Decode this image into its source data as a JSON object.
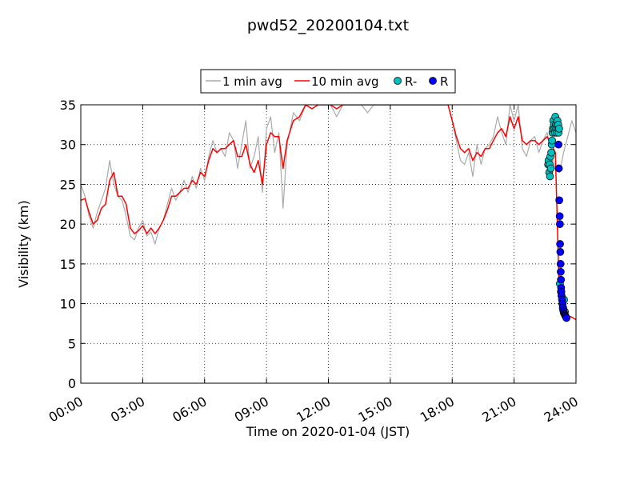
{
  "chart_data": {
    "type": "line",
    "title": "pwd52_20200104.txt",
    "xlabel": "Time on 2020-01-04 (JST)",
    "ylabel": "Visibility (km)",
    "xlim": [
      0,
      24
    ],
    "ylim": [
      0,
      35
    ],
    "x_ticks": [
      "00:00",
      "03:00",
      "06:00",
      "09:00",
      "12:00",
      "15:00",
      "18:00",
      "21:00",
      "24:00"
    ],
    "y_ticks": [
      "0",
      "5",
      "10",
      "15",
      "20",
      "25",
      "30",
      "35"
    ],
    "grid": true,
    "legend_position": "top-center",
    "colors": {
      "one_min": "#aaaaaa",
      "ten_min": "#ff0000",
      "r_minus": "#00bfbf",
      "r": "#0000ff"
    },
    "series": [
      {
        "name": "1 min avg",
        "style": "line",
        "x": [
          0.0,
          0.2,
          0.4,
          0.6,
          0.8,
          1.0,
          1.2,
          1.4,
          1.6,
          1.8,
          2.0,
          2.2,
          2.4,
          2.6,
          2.8,
          3.0,
          3.2,
          3.4,
          3.6,
          3.8,
          4.0,
          4.2,
          4.4,
          4.6,
          4.8,
          5.0,
          5.2,
          5.4,
          5.6,
          5.8,
          6.0,
          6.2,
          6.4,
          6.6,
          6.8,
          7.0,
          7.2,
          7.4,
          7.6,
          7.8,
          8.0,
          8.2,
          8.4,
          8.6,
          8.8,
          9.0,
          9.2,
          9.4,
          9.6,
          9.8,
          10.0,
          10.3,
          10.6,
          10.9,
          11.2,
          11.5,
          11.8,
          12.1,
          12.4,
          12.7,
          13.0,
          13.3,
          13.6,
          13.9,
          14.2,
          14.5,
          14.8,
          15.1,
          15.4,
          15.7,
          16.0,
          16.3,
          16.6,
          16.9,
          17.2,
          17.5,
          17.8,
          18.0,
          18.2,
          18.4,
          18.6,
          18.8,
          19.0,
          19.2,
          19.4,
          19.6,
          19.8,
          20.0,
          20.2,
          20.4,
          20.6,
          20.8,
          21.0,
          21.2,
          21.4,
          21.6,
          21.8,
          22.0,
          22.2,
          22.4,
          22.6,
          22.8,
          23.0,
          23.2,
          23.4,
          23.6,
          23.8,
          24.0
        ],
        "y": [
          25.0,
          23.5,
          21.0,
          19.5,
          21.5,
          23.0,
          24.5,
          28.0,
          25.0,
          23.5,
          23.0,
          21.0,
          18.5,
          18.0,
          19.5,
          20.5,
          18.5,
          19.0,
          17.5,
          19.5,
          20.5,
          22.5,
          24.5,
          23.0,
          24.0,
          25.5,
          24.0,
          26.0,
          24.5,
          27.0,
          25.5,
          28.5,
          30.5,
          29.0,
          29.5,
          28.5,
          31.5,
          30.5,
          27.0,
          30.0,
          33.0,
          27.0,
          28.5,
          31.0,
          24.0,
          32.0,
          33.5,
          29.0,
          31.5,
          22.0,
          30.0,
          34.0,
          33.0,
          35.0,
          34.5,
          35.0,
          35.0,
          35.0,
          33.5,
          35.0,
          35.0,
          35.0,
          35.0,
          34.0,
          35.0,
          35.0,
          35.0,
          35.0,
          35.0,
          35.0,
          35.0,
          35.0,
          35.0,
          35.0,
          35.0,
          35.0,
          35.0,
          33.0,
          30.5,
          28.0,
          27.5,
          29.0,
          26.0,
          30.0,
          27.5,
          29.5,
          30.0,
          31.0,
          33.5,
          31.5,
          30.0,
          35.0,
          33.0,
          35.0,
          29.5,
          28.5,
          30.5,
          31.0,
          29.0,
          30.5,
          31.5,
          29.0,
          27.0,
          26.5,
          29.0,
          31.0,
          33.0,
          31.5
        ]
      },
      {
        "name": "10 min avg",
        "style": "line",
        "x": [
          0.0,
          0.2,
          0.4,
          0.6,
          0.8,
          1.0,
          1.2,
          1.4,
          1.6,
          1.8,
          2.0,
          2.2,
          2.4,
          2.6,
          2.8,
          3.0,
          3.2,
          3.4,
          3.6,
          3.8,
          4.0,
          4.2,
          4.4,
          4.6,
          4.8,
          5.0,
          5.2,
          5.4,
          5.6,
          5.8,
          6.0,
          6.2,
          6.4,
          6.6,
          6.8,
          7.0,
          7.2,
          7.4,
          7.6,
          7.8,
          8.0,
          8.2,
          8.4,
          8.6,
          8.8,
          9.0,
          9.2,
          9.4,
          9.6,
          9.8,
          10.0,
          10.3,
          10.6,
          10.9,
          11.2,
          11.5,
          11.8,
          12.1,
          12.4,
          12.7,
          13.0,
          13.3,
          13.6,
          13.9,
          14.2,
          14.5,
          14.8,
          15.1,
          15.4,
          15.7,
          16.0,
          16.3,
          16.6,
          16.9,
          17.2,
          17.5,
          17.8,
          18.0,
          18.2,
          18.4,
          18.6,
          18.8,
          19.0,
          19.2,
          19.4,
          19.6,
          19.8,
          20.0,
          20.2,
          20.4,
          20.6,
          20.8,
          21.0,
          21.2,
          21.4,
          21.6,
          21.8,
          22.0,
          22.2,
          22.4,
          22.6,
          22.8,
          23.0,
          23.2,
          23.4,
          23.6,
          23.8,
          24.0
        ],
        "y": [
          23.0,
          23.2,
          21.5,
          20.0,
          20.5,
          22.0,
          22.5,
          25.5,
          26.5,
          23.5,
          23.5,
          22.5,
          19.5,
          18.8,
          19.2,
          19.8,
          18.8,
          19.5,
          18.8,
          19.5,
          20.5,
          21.8,
          23.5,
          23.5,
          24.0,
          24.5,
          24.5,
          25.5,
          25.0,
          26.5,
          26.0,
          28.0,
          29.5,
          29.0,
          29.5,
          29.5,
          30.0,
          30.5,
          28.5,
          28.5,
          30.0,
          27.5,
          26.5,
          28.0,
          25.0,
          30.0,
          31.5,
          31.0,
          31.0,
          27.0,
          30.5,
          33.0,
          33.5,
          35.0,
          34.5,
          35.0,
          35.0,
          35.0,
          34.5,
          35.0,
          35.0,
          35.0,
          35.0,
          35.0,
          35.0,
          35.0,
          35.0,
          35.0,
          35.0,
          35.0,
          35.0,
          35.0,
          35.0,
          35.0,
          35.0,
          35.0,
          35.0,
          33.0,
          31.0,
          29.5,
          29.0,
          29.5,
          28.0,
          29.0,
          28.5,
          29.5,
          29.5,
          30.5,
          31.5,
          32.0,
          31.0,
          33.5,
          32.0,
          33.5,
          30.5,
          30.0,
          30.5,
          30.5,
          30.0,
          30.5,
          31.0,
          30.0,
          29.0,
          10.0,
          9.0,
          8.5,
          8.3,
          8.0
        ]
      },
      {
        "name": "R-",
        "style": "marker",
        "x": [
          22.65,
          22.67,
          22.7,
          22.72,
          22.74,
          22.76,
          22.78,
          22.8,
          22.82,
          22.84,
          22.86,
          22.88,
          22.9,
          22.93,
          22.96,
          22.98,
          23.0,
          23.02,
          23.04,
          23.06,
          23.08,
          23.1,
          23.12,
          23.14,
          23.16,
          23.18,
          23.22,
          23.27,
          23.3,
          23.34,
          23.38,
          23.42,
          23.46
        ],
        "y": [
          27.5,
          28.0,
          26.5,
          27.5,
          26.0,
          28.5,
          27.0,
          29.0,
          30.0,
          30.5,
          31.5,
          32.0,
          33.0,
          32.5,
          32.0,
          31.5,
          33.5,
          32.5,
          32.0,
          31.5,
          32.5,
          33.0,
          32.0,
          32.5,
          31.5,
          32.0,
          12.5,
          11.5,
          11.0,
          10.0,
          9.5,
          10.5,
          9.0
        ]
      },
      {
        "name": "R",
        "style": "marker",
        "x": [
          23.15,
          23.17,
          23.19,
          23.21,
          23.22,
          23.23,
          23.24,
          23.25,
          23.26,
          23.27,
          23.28,
          23.29,
          23.3,
          23.32,
          23.34,
          23.36,
          23.38,
          23.4,
          23.42,
          23.44,
          23.46,
          23.48,
          23.5,
          23.52,
          23.54
        ],
        "y": [
          30.0,
          27.0,
          23.0,
          21.0,
          20.0,
          17.5,
          16.5,
          15.0,
          14.0,
          13.0,
          12.0,
          11.5,
          11.0,
          10.5,
          10.0,
          9.5,
          9.2,
          9.0,
          8.8,
          8.7,
          8.6,
          8.5,
          8.4,
          8.3,
          8.2
        ]
      }
    ]
  }
}
